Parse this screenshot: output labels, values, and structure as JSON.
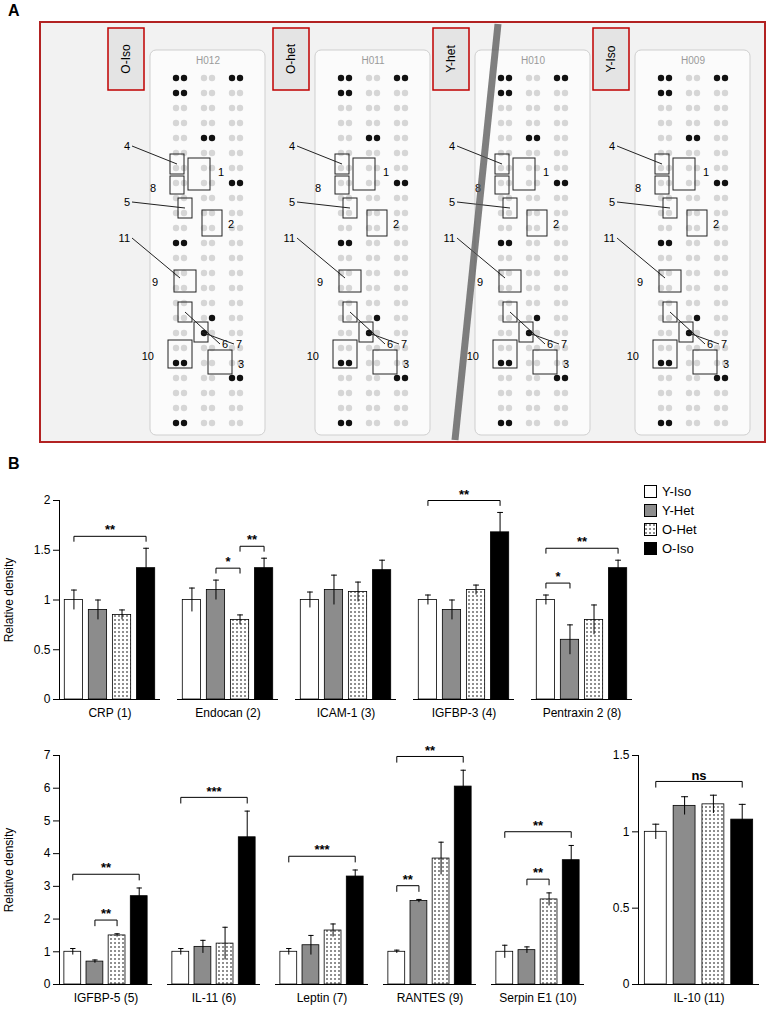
{
  "panel_a": {
    "label": "A",
    "membranes": [
      {
        "label": "O-Iso",
        "id": "H012"
      },
      {
        "label": "O-het",
        "id": "H011"
      },
      {
        "label": "Y-het",
        "id": "H010"
      },
      {
        "label": "Y-Iso",
        "id": "H009"
      }
    ],
    "spot_labels": [
      1,
      2,
      3,
      4,
      5,
      6,
      7,
      8,
      9,
      10,
      11
    ]
  },
  "panel_b_label": "B",
  "chart_data": [
    {
      "type": "bar",
      "y_label": "Relative density",
      "categories": [
        "CRP (1)",
        "Endocan (2)",
        "ICAM-1 (3)",
        "IGFBP-3 (4)",
        "Pentraxin 2 (8)"
      ],
      "series": [
        {
          "name": "Y-Iso",
          "color": "#ffffff",
          "values": [
            1,
            1,
            1,
            1,
            1
          ],
          "errors": [
            0.1,
            0.12,
            0.08,
            0.05,
            0.05
          ]
        },
        {
          "name": "Y-Het",
          "color": "#8c8c8c",
          "values": [
            0.9,
            1.1,
            1.1,
            0.9,
            0.6
          ],
          "errors": [
            0.1,
            0.1,
            0.15,
            0.1,
            0.15
          ]
        },
        {
          "name": "O-Het",
          "color": "#ffffff",
          "marker": "dots",
          "values": [
            0.85,
            0.8,
            1.08,
            1.1,
            0.8
          ],
          "errors": [
            0.05,
            0.05,
            0.1,
            0.05,
            0.15
          ]
        },
        {
          "name": "O-Iso",
          "color": "#000000",
          "values": [
            1.32,
            1.32,
            1.3,
            1.68,
            1.32
          ],
          "errors": [
            0.2,
            0.1,
            0.1,
            0.2,
            0.08
          ]
        }
      ],
      "annotations": [
        {
          "category": "CRP (1)",
          "from": "Y-Iso",
          "to": "O-Iso",
          "text": "**"
        },
        {
          "category": "Endocan (2)",
          "from": "Y-Het",
          "to": "O-Het",
          "text": "*"
        },
        {
          "category": "Endocan (2)",
          "from": "O-Het",
          "to": "O-Iso",
          "text": "**"
        },
        {
          "category": "IGFBP-3 (4)",
          "from": "Y-Iso",
          "to": "O-Iso",
          "text": "**"
        },
        {
          "category": "Pentraxin 2 (8)",
          "from": "Y-Iso",
          "to": "Y-Het",
          "text": "*"
        },
        {
          "category": "Pentraxin 2 (8)",
          "from": "Y-Iso",
          "to": "O-Iso",
          "text": "**"
        }
      ],
      "ylim": [
        0,
        2
      ],
      "yticks": [
        0,
        0.5,
        1,
        1.5,
        2
      ],
      "legend": "right"
    },
    {
      "type": "bar",
      "y_label": "Relative density",
      "categories": [
        "IGFBP-5 (5)",
        "IL-11 (6)",
        "Leptin (7)",
        "RANTES (9)",
        "Serpin E1 (10)"
      ],
      "series": [
        {
          "name": "Y-Iso",
          "color": "#ffffff",
          "values": [
            1,
            1,
            1,
            1,
            1
          ],
          "errors": [
            0.1,
            0.1,
            0.1,
            0.05,
            0.2
          ]
        },
        {
          "name": "Y-Het",
          "color": "#8c8c8c",
          "values": [
            0.7,
            1.15,
            1.2,
            2.55,
            1.05
          ],
          "errors": [
            0.05,
            0.2,
            0.3,
            0.05,
            0.1
          ]
        },
        {
          "name": "O-Het",
          "color": "#ffffff",
          "marker": "dots",
          "values": [
            1.5,
            1.25,
            1.65,
            3.85,
            2.6
          ],
          "errors": [
            0.05,
            0.5,
            0.2,
            0.5,
            0.2
          ]
        },
        {
          "name": "O-Iso",
          "color": "#000000",
          "values": [
            2.7,
            4.5,
            3.3,
            6.05,
            3.8
          ],
          "errors": [
            0.25,
            0.8,
            0.2,
            0.5,
            0.45
          ]
        }
      ],
      "annotations": [
        {
          "category": "IGFBP-5 (5)",
          "from": "Y-Iso",
          "to": "O-Iso",
          "text": "**"
        },
        {
          "category": "IGFBP-5 (5)",
          "from": "Y-Het",
          "to": "O-Het",
          "text": "**"
        },
        {
          "category": "IL-11 (6)",
          "from": "Y-Iso",
          "to": "O-Iso",
          "text": "***"
        },
        {
          "category": "Leptin (7)",
          "from": "Y-Iso",
          "to": "O-Iso",
          "text": "***"
        },
        {
          "category": "RANTES (9)",
          "from": "Y-Iso",
          "to": "O-Iso",
          "text": "**"
        },
        {
          "category": "RANTES (9)",
          "from": "Y-Iso",
          "to": "Y-Het",
          "text": "**"
        },
        {
          "category": "Serpin E1 (10)",
          "from": "Y-Iso",
          "to": "O-Iso",
          "text": "**"
        },
        {
          "category": "Serpin E1 (10)",
          "from": "Y-Het",
          "to": "O-Het",
          "text": "**"
        }
      ],
      "ylim": [
        0,
        7
      ],
      "yticks": [
        0,
        1,
        2,
        3,
        4,
        5,
        6,
        7
      ]
    },
    {
      "type": "bar",
      "categories": [
        "IL-10 (11)"
      ],
      "series": [
        {
          "name": "Y-Iso",
          "color": "#ffffff",
          "values": [
            1
          ],
          "errors": [
            0.05
          ]
        },
        {
          "name": "Y-Het",
          "color": "#8c8c8c",
          "values": [
            1.17
          ],
          "errors": [
            0.06
          ]
        },
        {
          "name": "O-Het",
          "color": "#ffffff",
          "marker": "dots",
          "values": [
            1.18
          ],
          "errors": [
            0.06
          ]
        },
        {
          "name": "O-Iso",
          "color": "#000000",
          "values": [
            1.08
          ],
          "errors": [
            0.1
          ]
        }
      ],
      "annotations": [
        {
          "category": "IL-10 (11)",
          "from": "Y-Iso",
          "to": "O-Iso",
          "text": "ns"
        }
      ],
      "ylim": [
        0,
        1.5
      ],
      "yticks": [
        0,
        0.5,
        1,
        1.5
      ]
    }
  ]
}
